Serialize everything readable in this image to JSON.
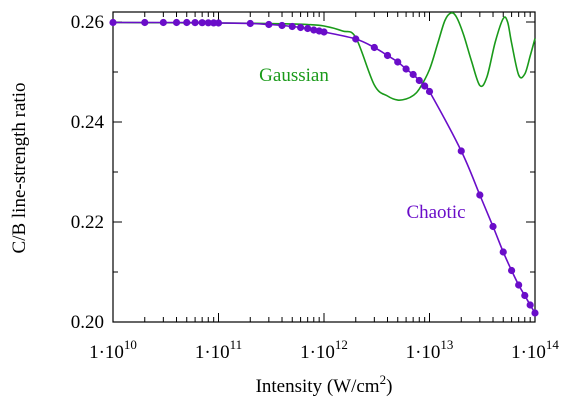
{
  "chart_data": {
    "type": "line",
    "xlabel": "Intensity (W/cm",
    "xlabel_sup": "2",
    "xlabel_close": ")",
    "ylabel": "C/B line-strength ratio",
    "x_scale": "log",
    "xlim": [
      10000000000.0,
      100000000000000.0
    ],
    "ylim": [
      0.2,
      0.262
    ],
    "x_ticks": [
      {
        "value": 10000000000.0,
        "base": "1·10",
        "exp": "10"
      },
      {
        "value": 100000000000.0,
        "base": "1·10",
        "exp": "11"
      },
      {
        "value": 1000000000000.0,
        "base": "1·10",
        "exp": "12"
      },
      {
        "value": 10000000000000.0,
        "base": "1·10",
        "exp": "13"
      },
      {
        "value": 100000000000000.0,
        "base": "1·10",
        "exp": "14"
      }
    ],
    "y_ticks": [
      {
        "value": 0.2,
        "label": "0.20"
      },
      {
        "value": 0.22,
        "label": "0.22"
      },
      {
        "value": 0.24,
        "label": "0.24"
      },
      {
        "value": 0.26,
        "label": "0.26"
      }
    ],
    "grid": false,
    "series": [
      {
        "name": "Gaussian",
        "color": "#1a9a1a",
        "marker": "none",
        "x": [
          10000000000.0,
          30000000000.0,
          100000000000.0,
          200000000000.0,
          400000000000.0,
          700000000000.0,
          1000000000000.0,
          1500000000000.0,
          2000000000000.0,
          3000000000000.0,
          4000000000000.0,
          5000000000000.0,
          6000000000000.0,
          7000000000000.0,
          8000000000000.0,
          10000000000000.0,
          12000000000000.0,
          14000000000000.0,
          16000000000000.0,
          18000000000000.0,
          21000000000000.0,
          25000000000000.0,
          30000000000000.0,
          35000000000000.0,
          42000000000000.0,
          50000000000000.0,
          55000000000000.0,
          60000000000000.0,
          70000000000000.0,
          80000000000000.0,
          90000000000000.0,
          100000000000000.0
        ],
        "y": [
          0.2599,
          0.25985,
          0.2598,
          0.25975,
          0.25965,
          0.2595,
          0.2592,
          0.2582,
          0.2569,
          0.2474,
          0.2452,
          0.24438,
          0.2446,
          0.2453,
          0.2466,
          0.2505,
          0.2558,
          0.2603,
          0.2618,
          0.261,
          0.2575,
          0.2522,
          0.2473,
          0.249,
          0.256,
          0.2607,
          0.26,
          0.2558,
          0.2494,
          0.2496,
          0.2532,
          0.2567
        ]
      },
      {
        "name": "Chaotic",
        "color": "#6a0dc9",
        "marker": "circle",
        "x": [
          10000000000.0,
          20000000000.0,
          30000000000.0,
          40000000000.0,
          50000000000.0,
          60000000000.0,
          70000000000.0,
          80000000000.0,
          90000000000.0,
          100000000000.0,
          200000000000.0,
          300000000000.0,
          400000000000.0,
          500000000000.0,
          600000000000.0,
          700000000000.0,
          800000000000.0,
          900000000000.0,
          1000000000000.0,
          2000000000000.0,
          3000000000000.0,
          4000000000000.0,
          5000000000000.0,
          6000000000000.0,
          7000000000000.0,
          8000000000000.0,
          9000000000000.0,
          10000000000000.0,
          20000000000000.0,
          30000000000000.0,
          40000000000000.0,
          50000000000000.0,
          60000000000000.0,
          70000000000000.0,
          80000000000000.0,
          90000000000000.0,
          100000000000000.0
        ],
        "y": [
          0.2599,
          0.2599,
          0.2599,
          0.2599,
          0.2599,
          0.25988,
          0.25986,
          0.25984,
          0.25982,
          0.2598,
          0.2597,
          0.2595,
          0.2593,
          0.2591,
          0.2589,
          0.2587,
          0.2584,
          0.2582,
          0.258,
          0.2566,
          0.2549,
          0.2533,
          0.252,
          0.2506,
          0.2495,
          0.2483,
          0.2472,
          0.2461,
          0.2342,
          0.2254,
          0.2191,
          0.214,
          0.2103,
          0.2074,
          0.2053,
          0.2034,
          0.2018
        ]
      }
    ],
    "labels_on_chart": [
      {
        "text": "Gaussian",
        "series": "Gaussian"
      },
      {
        "text": "Chaotic",
        "series": "Chaotic"
      }
    ]
  }
}
